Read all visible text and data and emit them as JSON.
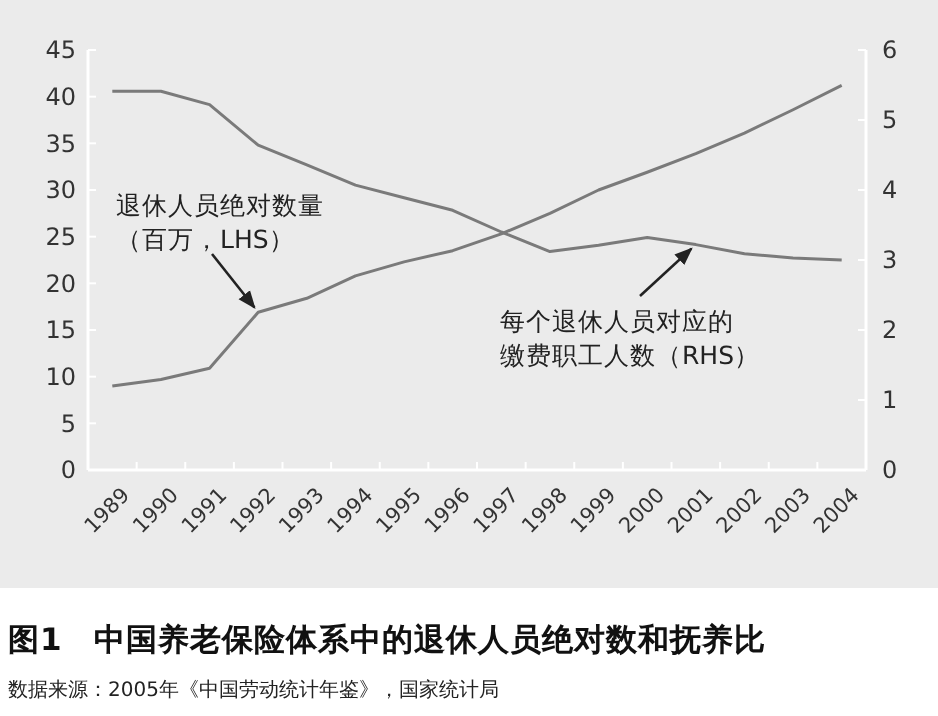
{
  "chart_data": {
    "type": "line",
    "title": "图1　中国养老保险体系中的退休人员绝对数和抚养比",
    "categories": [
      "1989",
      "1990",
      "1991",
      "1992",
      "1993",
      "1994",
      "1995",
      "1996",
      "1997",
      "1998",
      "1999",
      "2000",
      "2001",
      "2002",
      "2003",
      "2004"
    ],
    "series": [
      {
        "color": "#7a7a7a",
        "values": [
          9.0,
          9.7,
          10.9,
          16.9,
          18.4,
          20.8,
          22.3,
          23.5,
          25.3,
          27.5,
          30.0,
          31.9,
          33.9,
          36.1,
          38.6,
          41.2
        ]
      },
      {
        "color": "#7a7a7a",
        "axis": "y2",
        "values": [
          5.41,
          5.41,
          5.22,
          4.64,
          4.36,
          4.07,
          3.89,
          3.71,
          3.4,
          3.12,
          3.21,
          3.32,
          3.22,
          3.09,
          3.03,
          3.0
        ]
      }
    ],
    "ylim": [
      0,
      45
    ],
    "yticks": [
      0,
      5,
      10,
      15,
      20,
      25,
      30,
      35,
      40,
      45
    ],
    "y2lim": [
      0,
      6
    ],
    "y2ticks": [
      0,
      1,
      2,
      3,
      4,
      5,
      6
    ],
    "grid": false,
    "annotations": [
      "退休人员绝对数量",
      "（百万，LHS）",
      "每个退休人员对应的",
      "缴费职工人数（RHS）",
      "数据来源：2005年《中国劳动统计年鉴》，国家统计局"
    ]
  }
}
